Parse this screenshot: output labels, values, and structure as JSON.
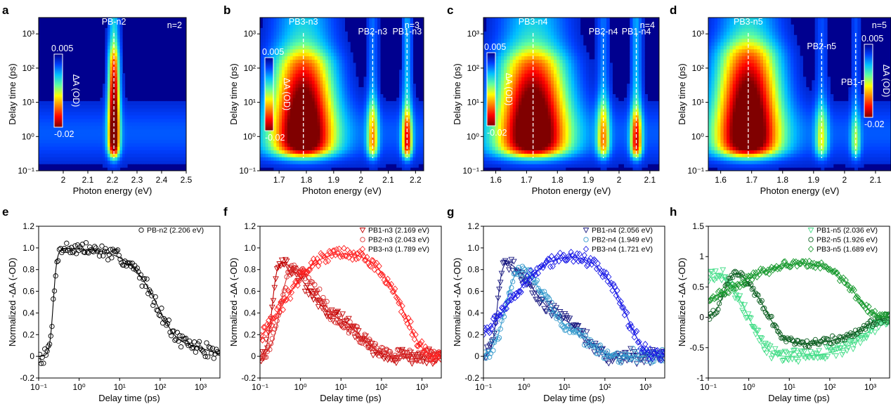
{
  "colors": {
    "n2": "#000000",
    "n3": [
      "#c00000",
      "#d83030",
      "#ff2020"
    ],
    "n4": [
      "#1a1a80",
      "#3399cc",
      "#1a1ae6"
    ],
    "n5": [
      "#44dd88",
      "#0b5e20",
      "#1a9a30"
    ],
    "cmap": [
      "#00008f",
      "#0040ff",
      "#00c0ff",
      "#60ff9f",
      "#ffff00",
      "#ff8000",
      "#ff0000",
      "#800000"
    ]
  },
  "chart_data": [
    {
      "letter": "a",
      "type": "heatmap",
      "label": "n=2",
      "xlabel": "Photon energy (eV)",
      "ylabel": "Delay time (ps)",
      "xlim": [
        1.9,
        2.5
      ],
      "ylim": [
        0.1,
        3000
      ],
      "yscale": "log",
      "xticks": [
        "2",
        "2.1",
        "2.2",
        "2.3",
        "2.4",
        "2.5"
      ],
      "yticks": [
        "10⁻¹",
        "10⁰",
        "10¹",
        "10²",
        "10³"
      ],
      "colorbar": {
        "max": "0.005",
        "min": "-0.02",
        "label": "ΔA (OD)"
      },
      "bleaches": [
        {
          "name": "PB-n2",
          "energy": 2.206,
          "width": 0.022,
          "tmax": 150,
          "amp": 1.0
        }
      ]
    },
    {
      "letter": "b",
      "type": "heatmap",
      "label": "n=3",
      "xlabel": "Photon energy (eV)",
      "ylabel": "Delay time (ps)",
      "xlim": [
        1.63,
        2.23
      ],
      "ylim": [
        0.1,
        3000
      ],
      "yscale": "log",
      "xticks": [
        "1.7",
        "1.8",
        "1.9",
        "2",
        "2.1",
        "2.2"
      ],
      "yticks": [
        "10⁻¹",
        "10⁰",
        "10¹",
        "10²",
        "10³"
      ],
      "colorbar": {
        "max": "0.005",
        "min": "-0.02",
        "label": "ΔA (OD)"
      },
      "bleaches": [
        {
          "name": "PB3-n3",
          "energy": 1.789,
          "width": 0.11,
          "tmax": 120,
          "amp": 1.0
        },
        {
          "name": "PB2-n3",
          "energy": 2.043,
          "width": 0.02,
          "tmax": 4,
          "amp": 0.6
        },
        {
          "name": "PB1-n3",
          "energy": 2.169,
          "width": 0.018,
          "tmax": 2,
          "amp": 0.9
        }
      ]
    },
    {
      "letter": "c",
      "type": "heatmap",
      "label": "n=4",
      "xlabel": "Photon energy (eV)",
      "ylabel": "Delay time (ps)",
      "xlim": [
        1.56,
        2.13
      ],
      "ylim": [
        0.1,
        3000
      ],
      "yscale": "log",
      "xticks": [
        "1.6",
        "1.7",
        "1.8",
        "1.9",
        "2",
        "2.1"
      ],
      "yticks": [
        "10⁻¹",
        "10⁰",
        "10¹",
        "10²",
        "10³"
      ],
      "colorbar": {
        "max": "0.005",
        "min": "-0.02",
        "label": "ΔA (OD)"
      },
      "bleaches": [
        {
          "name": "PB3-n4",
          "energy": 1.721,
          "width": 0.11,
          "tmax": 120,
          "amp": 1.0
        },
        {
          "name": "PB2-n4",
          "energy": 1.949,
          "width": 0.02,
          "tmax": 4,
          "amp": 0.6
        },
        {
          "name": "PB1-n4",
          "energy": 2.056,
          "width": 0.018,
          "tmax": 2,
          "amp": 0.9
        }
      ]
    },
    {
      "letter": "d",
      "type": "heatmap",
      "label": "n=5",
      "xlabel": "Photon energy (eV)",
      "ylabel": "Delay time (ps)",
      "xlim": [
        1.56,
        2.15
      ],
      "ylim": [
        0.1,
        3000
      ],
      "yscale": "log",
      "xticks": [
        "1.6",
        "1.7",
        "1.8",
        "1.9",
        "2",
        "2.1"
      ],
      "yticks": [
        "10⁻¹",
        "10⁰",
        "10¹",
        "10²",
        "10³"
      ],
      "colorbar": {
        "max": "0.005",
        "min": "-0.02",
        "label": "ΔA (OD)"
      },
      "bleaches": [
        {
          "name": "PB3-n5",
          "energy": 1.689,
          "width": 0.1,
          "tmax": 200,
          "amp": 1.0
        },
        {
          "name": "PB2-n5",
          "energy": 1.926,
          "width": 0.02,
          "tmax": 3,
          "amp": 0.45
        },
        {
          "name": "PB1-n5",
          "energy": 2.036,
          "width": 0.015,
          "tmax": 1.2,
          "amp": 0.45
        }
      ]
    },
    {
      "letter": "e",
      "type": "scatter",
      "xlabel": "Delay time (ps)",
      "ylabel": "Normalized -ΔA (-OD)",
      "xlim": [
        0.1,
        3000
      ],
      "ylim": [
        -0.2,
        1.2
      ],
      "xscale": "log",
      "xticks": [
        "10⁻¹",
        "10⁰",
        "10¹",
        "10²",
        "10³"
      ],
      "yticks": [
        "-0.2",
        "0",
        "0.2",
        "0.4",
        "0.6",
        "0.8",
        "1.0",
        "1.2"
      ],
      "series": [
        {
          "name": "PB-n2 (2.206 eV)",
          "marker": "circle",
          "t0": 0.23,
          "rise": 0.05,
          "decay": [
            [
              0.85,
              90
            ],
            [
              0.15,
              1500
            ]
          ],
          "neg": 0,
          "noise": 0.04
        }
      ]
    },
    {
      "letter": "f",
      "type": "scatter",
      "xlabel": "Delay time (ps)",
      "ylabel": "Normalized -ΔA (-OD)",
      "xlim": [
        0.1,
        3000
      ],
      "ylim": [
        -0.2,
        1.2
      ],
      "xscale": "log",
      "xticks": [
        "10⁻¹",
        "10⁰",
        "10¹",
        "10²",
        "10³"
      ],
      "yticks": [
        "-0.2",
        "0",
        "0.2",
        "0.4",
        "0.6",
        "0.8",
        "1.0",
        "1.2"
      ],
      "series": [
        {
          "name": "PB1-n3 (2.169 eV)",
          "marker": "triangle-down",
          "t0": 0.2,
          "rise": 0.07,
          "decay": [
            [
              0.55,
              1.5
            ],
            [
              0.45,
              35
            ]
          ],
          "neg": 0,
          "noise": 0.04
        },
        {
          "name": "PB2-n3 (2.043 eV)",
          "marker": "circle",
          "t0": 0.32,
          "rise": 0.12,
          "decay": [
            [
              0.6,
              2.5
            ],
            [
              0.4,
              40
            ]
          ],
          "neg": 0,
          "noise": 0.04
        },
        {
          "name": "PB3-n3 (1.789 eV)",
          "marker": "diamond",
          "t0": 0.4,
          "rise": 0.45,
          "decay": [
            [
              1.0,
              400
            ]
          ],
          "neg": 0,
          "noise": 0.035
        }
      ]
    },
    {
      "letter": "g",
      "type": "scatter",
      "xlabel": "Delay time (ps)",
      "ylabel": "Normalized -ΔA (-OD)",
      "xlim": [
        0.1,
        3000
      ],
      "ylim": [
        -0.2,
        1.2
      ],
      "xscale": "log",
      "xticks": [
        "10⁻¹",
        "10⁰",
        "10¹",
        "10²",
        "10³"
      ],
      "yticks": [
        "-0.2",
        "0",
        "0.2",
        "0.4",
        "0.6",
        "0.8",
        "1.0",
        "1.2"
      ],
      "series": [
        {
          "name": "PB1-n4 (2.056 eV)",
          "marker": "triangle-down",
          "t0": 0.22,
          "rise": 0.07,
          "decay": [
            [
              0.55,
              1.6
            ],
            [
              0.45,
              35
            ]
          ],
          "neg": 0,
          "noise": 0.04
        },
        {
          "name": "PB2-n4 (1.949 eV)",
          "marker": "circle",
          "t0": 0.35,
          "rise": 0.15,
          "decay": [
            [
              0.65,
              3
            ],
            [
              0.35,
              40
            ]
          ],
          "neg": 0,
          "noise": 0.04
        },
        {
          "name": "PB3-n4 (1.721 eV)",
          "marker": "diamond",
          "t0": 0.45,
          "rise": 0.55,
          "decay": [
            [
              1.0,
              350
            ]
          ],
          "neg": 0,
          "noise": 0.035
        }
      ]
    },
    {
      "letter": "h",
      "type": "scatter",
      "xlabel": "Delay time (ps)",
      "ylabel": "Normalized -ΔA (-OD)",
      "xlim": [
        0.1,
        3000
      ],
      "ylim": [
        -1,
        1.5
      ],
      "xscale": "log",
      "xticks": [
        "10⁻¹",
        "10⁰",
        "10¹",
        "10²",
        "10³"
      ],
      "yticks": [
        "-1",
        "-0.5",
        "0",
        "0.5",
        "1",
        "1.5"
      ],
      "series": [
        {
          "name": "PB1-n5 (2.036 eV)",
          "marker": "triangle-down",
          "t0": 0.08,
          "rise": 0.12,
          "decay": [
            [
              1.0,
              0.9
            ]
          ],
          "neg": -0.65,
          "negRise": 1.4,
          "negDecay": 900,
          "noise": 0.06
        },
        {
          "name": "PB2-n5 (1.926 eV)",
          "marker": "circle",
          "t0": 0.25,
          "rise": 0.12,
          "decay": [
            [
              1.0,
              2.5
            ]
          ],
          "neg": -0.45,
          "negRise": 3.5,
          "negDecay": 700,
          "noise": 0.04
        },
        {
          "name": "PB3-n5 (1.689 eV)",
          "marker": "diamond",
          "t0": 0.4,
          "rise": 0.75,
          "decay": [
            [
              1.0,
              450
            ]
          ],
          "neg": 0,
          "noise": 0.04
        }
      ]
    }
  ]
}
